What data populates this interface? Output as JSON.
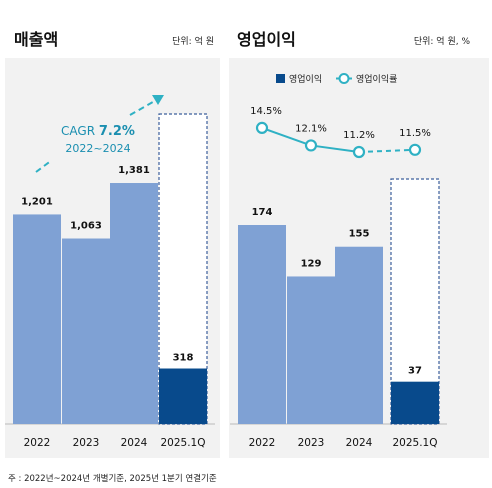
{
  "colors": {
    "panel_bg": "#f2f2f2",
    "bar_light": "#7fa1d4",
    "bar_dark": "#084a8c",
    "accent": "#2fb1c4",
    "projection_border": "#3c5f9c"
  },
  "footnote": "주 : 2022년~2024년 개별기준, 2025년 1분기 연결기준",
  "chart_data": [
    {
      "type": "bar",
      "title": "매출액",
      "unit": "단위: 억 원",
      "categories": [
        "2022",
        "2023",
        "2024",
        "2025.1Q"
      ],
      "values": [
        1201,
        1063,
        1381,
        318
      ],
      "value_labels": [
        "1,201",
        "1,063",
        "1,381",
        "318"
      ],
      "annotation": {
        "prefix": "CAGR",
        "value": "7.2%",
        "period": "2022~2024"
      }
    },
    {
      "type": "bar",
      "title": "영업이익",
      "unit": "단위: 억 원, %",
      "categories": [
        "2022",
        "2023",
        "2024",
        "2025.1Q"
      ],
      "values": [
        174,
        129,
        155,
        37
      ],
      "value_labels": [
        "174",
        "129",
        "155",
        "37"
      ],
      "legend": [
        {
          "name": "영업이익",
          "marker": "square"
        },
        {
          "name": "영업이익률",
          "marker": "circle-line"
        }
      ],
      "series": [
        {
          "name": "영업이익",
          "values": [
            174,
            129,
            155,
            37
          ]
        },
        {
          "name": "영업이익률",
          "values": [
            14.5,
            12.1,
            11.2,
            11.5
          ],
          "value_labels": [
            "14.5%",
            "12.1%",
            "11.2%",
            "11.5%"
          ]
        }
      ]
    }
  ]
}
